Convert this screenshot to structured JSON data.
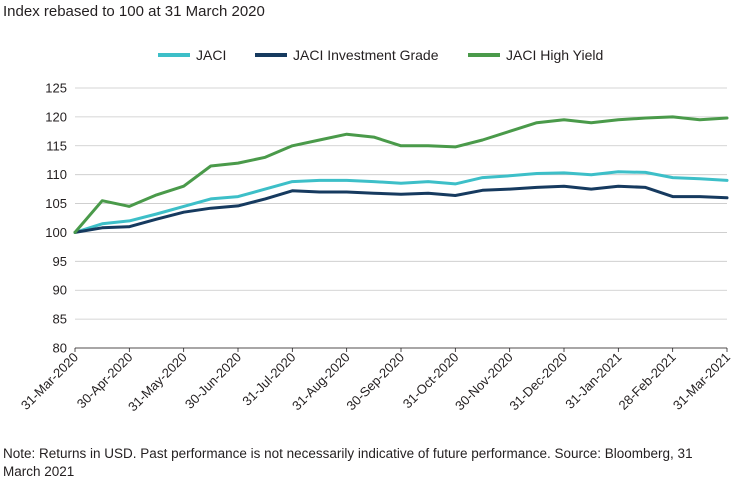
{
  "title": "Index rebased to 100 at 31 March 2020",
  "note": "Note: Returns in USD. Past performance is not necessarily indicative of future performance. Source: Bloomberg, 31 March 2021",
  "chart_data": {
    "type": "line",
    "title": "Index rebased to 100 at 31 March 2020",
    "xlabel": "",
    "ylabel": "",
    "ylim": [
      80,
      125
    ],
    "yticks": [
      80,
      85,
      90,
      95,
      100,
      105,
      110,
      115,
      120,
      125
    ],
    "x_tick_labels": [
      "31-Mar-2020",
      "30-Apr-2020",
      "31-May-2020",
      "30-Jun-2020",
      "31-Jul-2020",
      "31-Aug-2020",
      "30-Sep-2020",
      "31-Oct-2020",
      "30-Nov-2020",
      "31-Dec-2020",
      "31-Jan-2021",
      "28-Feb-2021",
      "31-Mar-2021"
    ],
    "grid": "horizontal",
    "legend_position": "top",
    "x": [
      "31-Mar-2020",
      "15-Apr-2020",
      "30-Apr-2020",
      "15-May-2020",
      "31-May-2020",
      "15-Jun-2020",
      "30-Jun-2020",
      "15-Jul-2020",
      "31-Jul-2020",
      "15-Aug-2020",
      "31-Aug-2020",
      "15-Sep-2020",
      "30-Sep-2020",
      "15-Oct-2020",
      "31-Oct-2020",
      "15-Nov-2020",
      "30-Nov-2020",
      "15-Dec-2020",
      "31-Dec-2020",
      "15-Jan-2021",
      "31-Jan-2021",
      "15-Feb-2021",
      "28-Feb-2021",
      "15-Mar-2021",
      "31-Mar-2021"
    ],
    "series": [
      {
        "name": "JACI",
        "color": "#3dbfc8",
        "values": [
          100,
          101.5,
          102,
          103.2,
          104.5,
          105.8,
          106.2,
          107.5,
          108.8,
          109.0,
          109.0,
          108.8,
          108.5,
          108.8,
          108.4,
          109.5,
          109.8,
          110.2,
          110.3,
          110.0,
          110.5,
          110.4,
          109.5,
          109.3,
          109.0
        ]
      },
      {
        "name": "JACI Investment Grade",
        "color": "#163a5f",
        "values": [
          100,
          100.8,
          101.0,
          102.3,
          103.5,
          104.2,
          104.6,
          105.8,
          107.2,
          107.0,
          107.0,
          106.8,
          106.6,
          106.8,
          106.4,
          107.3,
          107.5,
          107.8,
          108.0,
          107.5,
          108.0,
          107.8,
          106.2,
          106.2,
          106.0
        ]
      },
      {
        "name": "JACI High Yield",
        "color": "#4a9a4a",
        "values": [
          100,
          105.5,
          104.5,
          106.5,
          108.0,
          111.5,
          112.0,
          113.0,
          115.0,
          116.0,
          117.0,
          116.5,
          115.0,
          115.0,
          114.8,
          116.0,
          117.5,
          119.0,
          119.5,
          119.0,
          119.5,
          119.8,
          120.0,
          119.5,
          119.8
        ]
      }
    ]
  }
}
